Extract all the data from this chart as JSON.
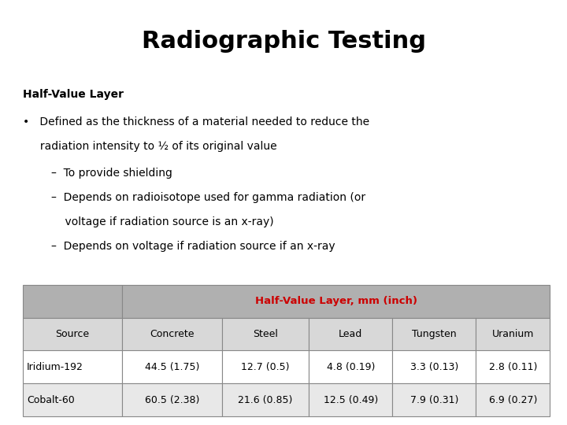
{
  "title": "Radiographic Testing",
  "title_fontsize": 22,
  "title_fontweight": "bold",
  "section_header": "Half-Value Layer",
  "bullet_line1": "•   Defined as the thickness of a material needed to reduce the",
  "bullet_line2": "     radiation intensity to ½ of its original value",
  "sub1": "–  To provide shielding",
  "sub2": "–  Depends on radioisotope used for gamma radiation (or",
  "sub2b": "    voltage if radiation source is an x-ray)",
  "sub3": "–  Depends on voltage if radiation source if an x-ray",
  "table_header_label": "Half-Value Layer, mm (inch)",
  "table_header_color": "#cc0000",
  "table_header_bg": "#b0b0b0",
  "table_col_header_bg": "#d8d8d8",
  "table_col_headers": [
    "Source",
    "Concrete",
    "Steel",
    "Lead",
    "Tungsten",
    "Uranium"
  ],
  "table_rows": [
    [
      "Iridium-192",
      "44.5 (1.75)",
      "12.7 (0.5)",
      "4.8 (0.19)",
      "3.3 (0.13)",
      "2.8 (0.11)"
    ],
    [
      "Cobalt-60",
      "60.5 (2.38)",
      "21.6 (0.85)",
      "12.5 (0.49)",
      "7.9 (0.31)",
      "6.9 (0.27)"
    ]
  ],
  "table_row_bg_odd": "#ffffff",
  "table_row_bg_even": "#e8e8e8",
  "table_border_color": "#888888",
  "bg_color": "#ffffff",
  "text_color": "#000000",
  "font_family": "DejaVu Sans",
  "body_fontsize": 10,
  "table_fontsize": 9
}
